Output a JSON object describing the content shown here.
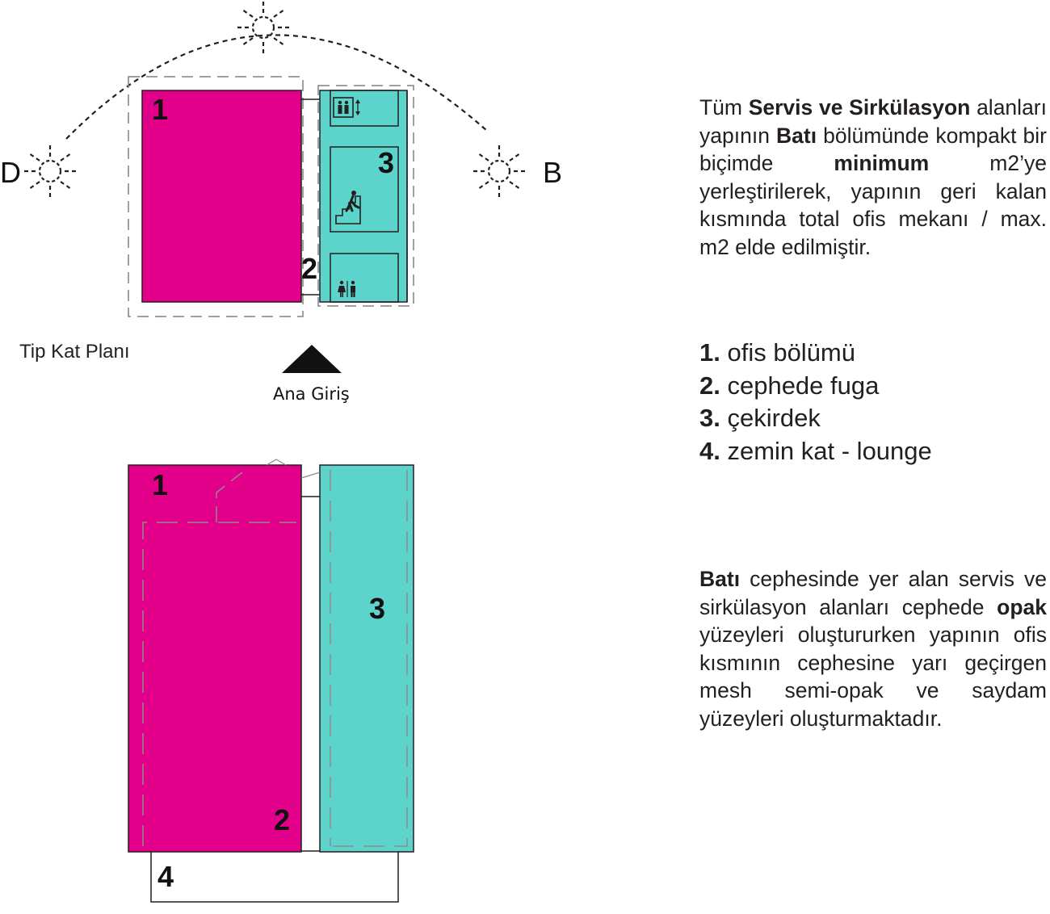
{
  "colors": {
    "office": "#e2008a",
    "core": "#5dd4cb",
    "line": "#231f20"
  },
  "plan": {
    "caption": "Tip Kat Planı",
    "entrance_label": "Ana Giriş",
    "west_label": "D",
    "east_label": "B",
    "numbers": [
      "1",
      "2",
      "3"
    ],
    "icons": [
      "elevator-icon",
      "stairs-person-icon",
      "restroom-icon",
      "sun-icon"
    ]
  },
  "elevation": {
    "numbers": [
      "1",
      "2",
      "3",
      "4"
    ]
  },
  "paragraph1": {
    "segments": [
      {
        "text": "Tüm ",
        "bold": false
      },
      {
        "text": "Servis ve Sirkülasyon",
        "bold": true
      },
      {
        "text": " alanları yapının ",
        "bold": false
      },
      {
        "text": "Batı",
        "bold": true
      },
      {
        "text": " bölümünde kompakt bir biçimde ",
        "bold": false
      },
      {
        "text": "minimum",
        "bold": true
      },
      {
        "text": " m2’ye yerleştirilerek, yapının geri kalan kısmında total ofis mekanı / max. m2 elde edilmiştir.",
        "bold": false
      }
    ]
  },
  "legend": [
    {
      "num": "1.",
      "label": " ofis bölümü"
    },
    {
      "num": "2.",
      "label": " cephede fuga"
    },
    {
      "num": "3.",
      "label": " çekirdek"
    },
    {
      "num": "4.",
      "label": " zemin kat - lounge"
    }
  ],
  "paragraph2": {
    "segments": [
      {
        "text": "Batı",
        "bold": true
      },
      {
        "text": " cephesinde yer alan servis ve sirkülasyon  alanları cephede ",
        "bold": false
      },
      {
        "text": "opak",
        "bold": true
      },
      {
        "text": " yüzeyleri oluştururken yapının ofis kısmının cephesine yarı geçirgen mesh semi-opak ve saydam yüzeyleri oluşturmaktadır.",
        "bold": false
      }
    ]
  }
}
